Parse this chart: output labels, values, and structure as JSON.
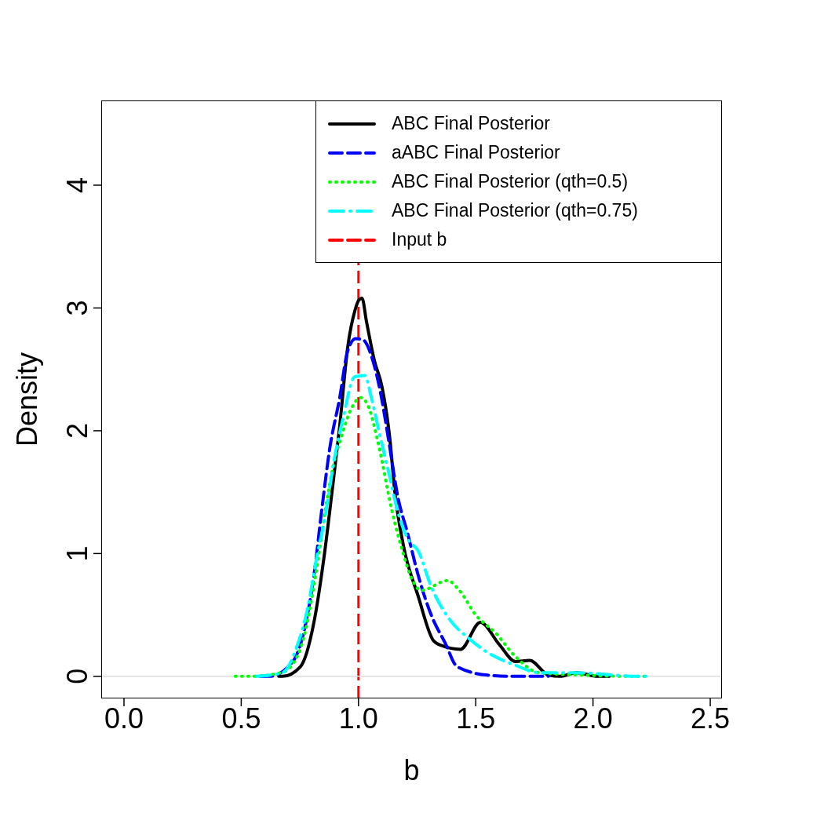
{
  "chart_data": {
    "type": "line",
    "xlabel": "b",
    "ylabel": "Density",
    "xlim": [
      -0.097,
      2.55
    ],
    "ylim": [
      -0.18,
      4.69
    ],
    "xticks": [
      {
        "value": 0,
        "label": "0.0"
      },
      {
        "value": 0.5,
        "label": "0.5"
      },
      {
        "value": 1,
        "label": "1.0"
      },
      {
        "value": 1.5,
        "label": "1.5"
      },
      {
        "value": 2,
        "label": "2.0"
      },
      {
        "value": 2.5,
        "label": "2.5"
      }
    ],
    "yticks": [
      0,
      1,
      2,
      3,
      4
    ],
    "grid": false,
    "legend": "top right",
    "series": [
      {
        "name": "ABC Final Posterior",
        "color": "#000000",
        "line_style": "solid",
        "x": [
          0.66,
          0.676,
          0.753,
          0.81,
          0.853,
          0.887,
          0.92,
          0.954,
          0.985,
          1.0,
          1.015,
          1.034,
          1.068,
          1.1,
          1.134,
          1.155,
          1.19,
          1.255,
          1.32,
          1.355,
          1.435,
          1.52,
          1.6,
          1.67,
          1.73,
          1.81,
          1.86,
          1.93,
          2.02,
          2.07
        ],
        "values": [
          0,
          0,
          0.08,
          0.44,
          0.97,
          1.5,
          2.04,
          2.68,
          2.98,
          3.06,
          3.08,
          2.89,
          2.57,
          2.36,
          1.93,
          1.5,
          1.08,
          0.65,
          0.29,
          0.25,
          0.22,
          0.44,
          0.26,
          0.12,
          0.13,
          0.01,
          0,
          0.03,
          0,
          0
        ]
      },
      {
        "name": "aABC Final Posterior",
        "color": "#0000ff",
        "line_style": "dashed",
        "x": [
          0.58,
          0.62,
          0.72,
          0.776,
          0.81,
          0.843,
          0.877,
          0.92,
          0.954,
          0.988,
          1.02,
          1.055,
          1.094,
          1.128,
          1.168,
          1.21,
          1.255,
          1.31,
          1.37,
          1.42,
          1.55,
          1.66,
          1.81
        ],
        "values": [
          0,
          0,
          0.12,
          0.44,
          0.82,
          1.35,
          1.85,
          2.27,
          2.65,
          2.75,
          2.74,
          2.61,
          2.31,
          1.93,
          1.46,
          1.16,
          0.82,
          0.5,
          0.27,
          0.08,
          0.01,
          0,
          0
        ]
      },
      {
        "name": "ABC Final Posterior (qth=0.5)",
        "color": "#00ff00",
        "line_style": "dotted",
        "x": [
          0.475,
          0.54,
          0.67,
          0.716,
          0.766,
          0.803,
          0.833,
          0.86,
          0.894,
          0.927,
          0.967,
          1.01,
          1.044,
          1.078,
          1.104,
          1.128,
          1.155,
          1.188,
          1.228,
          1.268,
          1.38,
          1.43,
          1.5,
          1.586,
          1.67,
          1.77,
          1.96,
          2.15,
          2.22
        ],
        "values": [
          0,
          0,
          0.03,
          0.09,
          0.31,
          0.66,
          1.02,
          1.37,
          1.73,
          1.95,
          2.17,
          2.27,
          2.19,
          1.95,
          1.72,
          1.48,
          1.25,
          1.02,
          0.79,
          0.7,
          0.78,
          0.7,
          0.5,
          0.35,
          0.16,
          0.03,
          0.01,
          0,
          0
        ]
      },
      {
        "name": "ABC Final Posterior (qth=0.75)",
        "color": "#00ffff",
        "line_style": "dashdot",
        "x": [
          0.565,
          0.676,
          0.733,
          0.787,
          0.82,
          0.853,
          0.9,
          0.934,
          0.984,
          1.027,
          1.055,
          1.088,
          1.128,
          1.168,
          1.21,
          1.255,
          1.31,
          1.39,
          1.47,
          1.546,
          1.67,
          1.77,
          1.92,
          2.2,
          2.25
        ],
        "values": [
          0,
          0.03,
          0.22,
          0.59,
          0.95,
          1.25,
          1.8,
          2.1,
          2.44,
          2.45,
          2.27,
          1.99,
          1.67,
          1.34,
          1.12,
          1.02,
          0.73,
          0.46,
          0.31,
          0.2,
          0.09,
          0.03,
          0.03,
          0,
          0
        ]
      }
    ],
    "ref_lines": [
      {
        "axis": "x",
        "value": 1,
        "label": "Input b",
        "color": "#ff0000",
        "line_style": "dashed"
      },
      {
        "axis": "y",
        "value": 0,
        "color": "#dddddd",
        "line_style": "solid"
      }
    ]
  }
}
